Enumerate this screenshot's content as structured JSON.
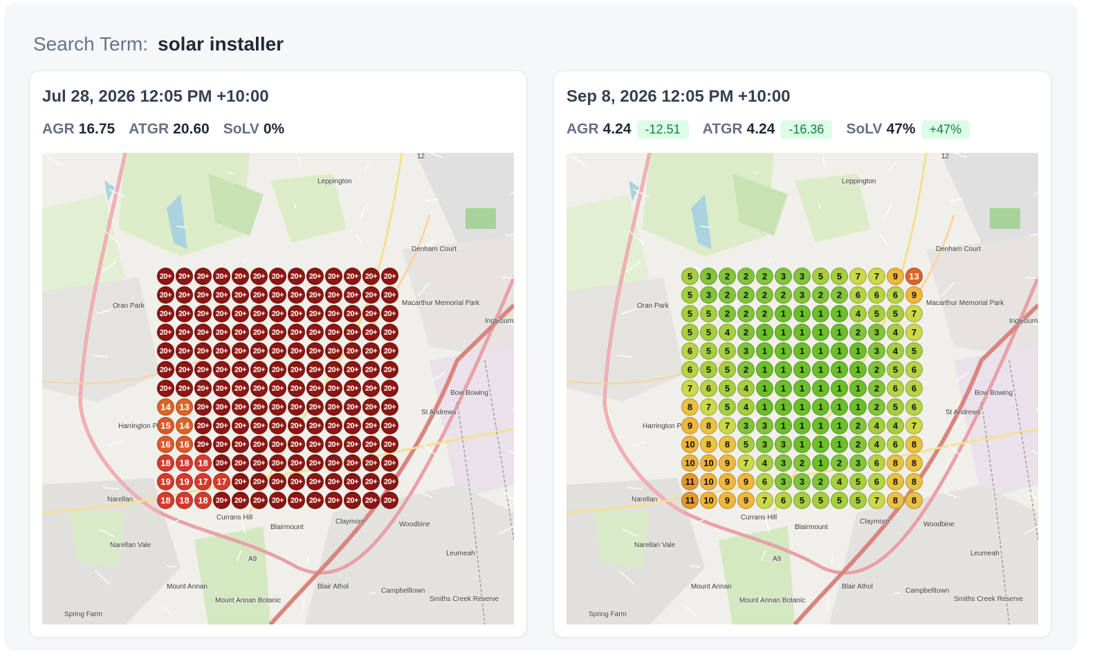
{
  "search": {
    "label": "Search Term:",
    "term": "solar installer"
  },
  "map_labels": [
    "Leppington",
    "Denham Court",
    "Oran Park",
    "Harrington Park",
    "Currans Hill",
    "Blairmount",
    "Claymore",
    "Woodbine",
    "Narellan",
    "Narellan Vale",
    "Mount Annan",
    "Blair Athol",
    "Campbelltown",
    "Leumeah",
    "Bow Bowing",
    "St Andrews",
    "Ingleburn",
    "Spring Farm",
    "Macarthur Memorial Park",
    "Mount Annan Botanic",
    "Smiths Creek Reserve",
    "A9",
    "12"
  ],
  "scans": [
    {
      "date": "Jul 28, 2026 12:05 PM +10:00",
      "metrics": [
        {
          "key": "AGR",
          "value": "16.75",
          "delta": ""
        },
        {
          "key": "ATGR",
          "value": "20.60",
          "delta": ""
        },
        {
          "key": "SoLV",
          "value": "0%",
          "delta": ""
        }
      ],
      "grid": [
        [
          "20+",
          "20+",
          "20+",
          "20+",
          "20+",
          "20+",
          "20+",
          "20+",
          "20+",
          "20+",
          "20+",
          "20+",
          "20+"
        ],
        [
          "20+",
          "20+",
          "20+",
          "20+",
          "20+",
          "20+",
          "20+",
          "20+",
          "20+",
          "20+",
          "20+",
          "20+",
          "20+"
        ],
        [
          "20+",
          "20+",
          "20+",
          "20+",
          "20+",
          "20+",
          "20+",
          "20+",
          "20+",
          "20+",
          "20+",
          "20+",
          "20+"
        ],
        [
          "20+",
          "20+",
          "20+",
          "20+",
          "20+",
          "20+",
          "20+",
          "20+",
          "20+",
          "20+",
          "20+",
          "20+",
          "20+"
        ],
        [
          "20+",
          "20+",
          "20+",
          "20+",
          "20+",
          "20+",
          "20+",
          "20+",
          "20+",
          "20+",
          "20+",
          "20+",
          "20+"
        ],
        [
          "20+",
          "20+",
          "20+",
          "20+",
          "20+",
          "20+",
          "20+",
          "20+",
          "20+",
          "20+",
          "20+",
          "20+",
          "20+"
        ],
        [
          "20+",
          "20+",
          "20+",
          "20+",
          "20+",
          "20+",
          "20+",
          "20+",
          "20+",
          "20+",
          "20+",
          "20+",
          "20+"
        ],
        [
          "14",
          "13",
          "20+",
          "20+",
          "20+",
          "20+",
          "20+",
          "20+",
          "20+",
          "20+",
          "20+",
          "20+",
          "20+"
        ],
        [
          "15",
          "14",
          "20+",
          "20+",
          "20+",
          "20+",
          "20+",
          "20+",
          "20+",
          "20+",
          "20+",
          "20+",
          "20+"
        ],
        [
          "16",
          "16",
          "20+",
          "20+",
          "20+",
          "20+",
          "20+",
          "20+",
          "20+",
          "20+",
          "20+",
          "20+",
          "20+"
        ],
        [
          "18",
          "18",
          "18",
          "20+",
          "20+",
          "20+",
          "20+",
          "20+",
          "20+",
          "20+",
          "20+",
          "20+",
          "20+"
        ],
        [
          "19",
          "19",
          "17",
          "17",
          "20+",
          "20+",
          "20+",
          "20+",
          "20+",
          "20+",
          "20+",
          "20+",
          "20+"
        ],
        [
          "18",
          "18",
          "18",
          "20+",
          "20+",
          "20+",
          "20+",
          "20+",
          "20+",
          "20+",
          "20+",
          "20+",
          "20+"
        ]
      ]
    },
    {
      "date": "Sep 8, 2026 12:05 PM +10:00",
      "metrics": [
        {
          "key": "AGR",
          "value": "4.24",
          "delta": "-12.51"
        },
        {
          "key": "ATGR",
          "value": "4.24",
          "delta": "-16.36"
        },
        {
          "key": "SoLV",
          "value": "47%",
          "delta": "+47%"
        }
      ],
      "grid": [
        [
          "5",
          "3",
          "2",
          "2",
          "2",
          "3",
          "3",
          "5",
          "5",
          "7",
          "7",
          "9",
          "13"
        ],
        [
          "5",
          "3",
          "2",
          "2",
          "2",
          "2",
          "3",
          "2",
          "2",
          "6",
          "6",
          "6",
          "9"
        ],
        [
          "5",
          "5",
          "2",
          "2",
          "2",
          "1",
          "1",
          "1",
          "1",
          "4",
          "5",
          "5",
          "7"
        ],
        [
          "5",
          "5",
          "4",
          "2",
          "1",
          "1",
          "1",
          "1",
          "1",
          "2",
          "3",
          "4",
          "7"
        ],
        [
          "6",
          "5",
          "5",
          "3",
          "1",
          "1",
          "1",
          "1",
          "1",
          "1",
          "3",
          "4",
          "5"
        ],
        [
          "6",
          "5",
          "5",
          "2",
          "1",
          "1",
          "1",
          "1",
          "1",
          "1",
          "2",
          "5",
          "6"
        ],
        [
          "7",
          "6",
          "5",
          "4",
          "1",
          "1",
          "1",
          "1",
          "1",
          "1",
          "2",
          "6",
          "6"
        ],
        [
          "8",
          "7",
          "5",
          "4",
          "1",
          "1",
          "1",
          "1",
          "1",
          "1",
          "2",
          "5",
          "6"
        ],
        [
          "9",
          "8",
          "7",
          "3",
          "3",
          "1",
          "1",
          "1",
          "1",
          "2",
          "4",
          "4",
          "7"
        ],
        [
          "10",
          "8",
          "8",
          "5",
          "3",
          "3",
          "1",
          "1",
          "1",
          "2",
          "4",
          "6",
          "8"
        ],
        [
          "10",
          "10",
          "9",
          "7",
          "4",
          "3",
          "2",
          "1",
          "2",
          "3",
          "6",
          "8",
          "8"
        ],
        [
          "11",
          "10",
          "9",
          "9",
          "6",
          "3",
          "3",
          "2",
          "4",
          "5",
          "6",
          "8",
          "8"
        ],
        [
          "11",
          "10",
          "9",
          "9",
          "7",
          "6",
          "5",
          "5",
          "5",
          "5",
          "7",
          "8",
          "8"
        ]
      ]
    }
  ]
}
